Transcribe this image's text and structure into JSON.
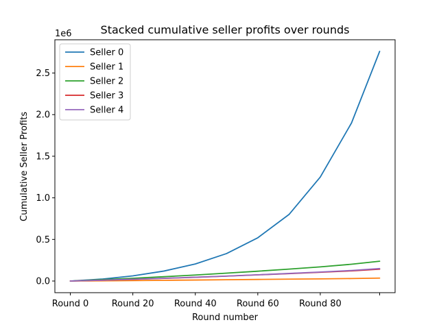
{
  "chart_data": {
    "type": "line",
    "title": "Stacked cumulative seller profits over rounds",
    "xlabel": "Round number",
    "ylabel": "Cumulative Seller Profits",
    "y_offset_label": "1e6",
    "xlim": [
      -4.95,
      103.95
    ],
    "ylim": [
      -140000,
      2900000
    ],
    "x_ticks": [
      0,
      20,
      40,
      60,
      80,
      99
    ],
    "x_tick_labels": [
      "Round 0",
      "Round 20",
      "Round 40",
      "Round 60",
      "Round 80",
      ""
    ],
    "y_ticks": [
      0,
      500000,
      1000000,
      1500000,
      2000000,
      2500000
    ],
    "y_tick_labels": [
      "0.0",
      "0.5",
      "1.0",
      "1.5",
      "2.0",
      "2.5"
    ],
    "grid": false,
    "legend_position": "top-left",
    "x": [
      0,
      10,
      20,
      30,
      40,
      50,
      60,
      70,
      80,
      90,
      99
    ],
    "series": [
      {
        "name": "Seller 0",
        "color": "#1f77b4",
        "values": [
          0,
          23000,
          62000,
          120000,
          205000,
          330000,
          520000,
          800000,
          1250000,
          1900000,
          2760000
        ]
      },
      {
        "name": "Seller 1",
        "color": "#ff7f0e",
        "values": [
          0,
          2500,
          5500,
          8500,
          12000,
          15500,
          19000,
          22500,
          26000,
          30000,
          35000
        ]
      },
      {
        "name": "Seller 2",
        "color": "#2ca02c",
        "values": [
          0,
          16000,
          33000,
          52000,
          72000,
          95000,
          118000,
          143000,
          170000,
          202000,
          238000
        ]
      },
      {
        "name": "Seller 3",
        "color": "#d62728",
        "values": [
          0,
          9000,
          20000,
          32000,
          45000,
          59000,
          74000,
          89000,
          105000,
          122000,
          142000
        ]
      },
      {
        "name": "Seller 4",
        "color": "#9467bd",
        "values": [
          0,
          10000,
          21000,
          33000,
          46000,
          60000,
          75000,
          91000,
          108000,
          127000,
          150000
        ]
      }
    ]
  }
}
